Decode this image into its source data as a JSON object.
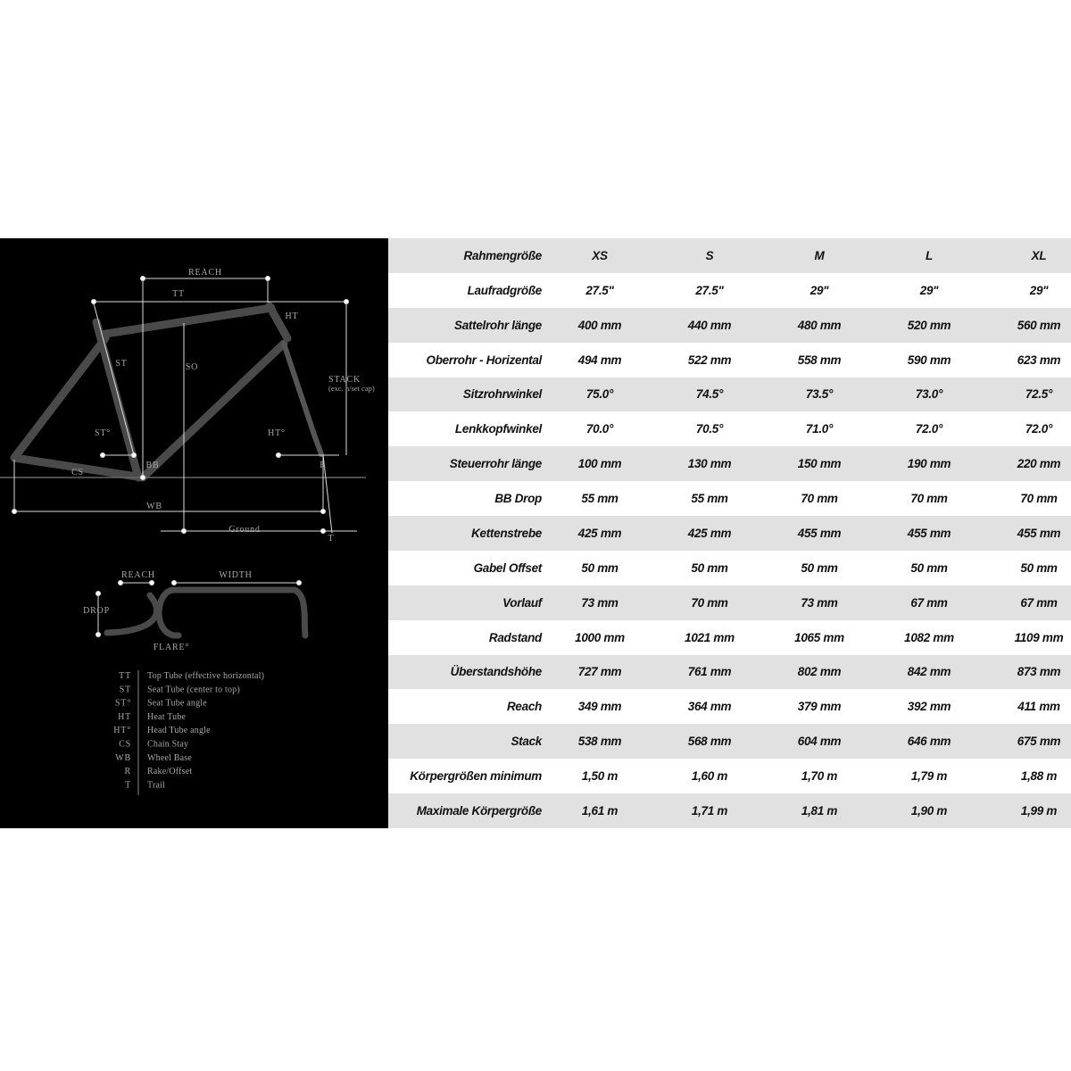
{
  "diagram": {
    "frame_labels": [
      "REACH",
      "TT",
      "HT",
      "ST",
      "SO",
      "STACK",
      "(exc. h/set cap)",
      "ST°",
      "HT°",
      "BB",
      "R",
      "CS",
      "WB",
      "Ground",
      "T"
    ],
    "handlebar_labels": [
      "REACH",
      "WIDTH",
      "DROP",
      "FLARE°"
    ],
    "legend": [
      {
        "abbr": "TT",
        "desc": "Top Tube (effective horizontal)"
      },
      {
        "abbr": "ST",
        "desc": "Seat Tube (center to top)"
      },
      {
        "abbr": "ST°",
        "desc": "Seat Tube angle"
      },
      {
        "abbr": "HT",
        "desc": "Heat Tube"
      },
      {
        "abbr": "HT°",
        "desc": "Head Tube angle"
      },
      {
        "abbr": "CS",
        "desc": "Chain Stay"
      },
      {
        "abbr": "WB",
        "desc": "Wheel Base"
      },
      {
        "abbr": "R",
        "desc": "Rake/Offset"
      },
      {
        "abbr": "T",
        "desc": "Trail"
      }
    ]
  },
  "table": {
    "rows": [
      [
        "Rahmengröße",
        "XS",
        "S",
        "M",
        "L",
        "XL"
      ],
      [
        "Laufradgröße",
        "27.5\"",
        "27.5\"",
        "29\"",
        "29\"",
        "29\""
      ],
      [
        "Sattelrohr länge",
        "400 mm",
        "440 mm",
        "480 mm",
        "520 mm",
        "560 mm"
      ],
      [
        "Oberrohr - Horizental",
        "494 mm",
        "522 mm",
        "558 mm",
        "590 mm",
        "623 mm"
      ],
      [
        "Sitzrohrwinkel",
        "75.0°",
        "74.5°",
        "73.5°",
        "73.0°",
        "72.5°"
      ],
      [
        "Lenkkopfwinkel",
        "70.0°",
        "70.5°",
        "71.0°",
        "72.0°",
        "72.0°"
      ],
      [
        "Steuerrohr länge",
        "100 mm",
        "130 mm",
        "150 mm",
        "190 mm",
        "220 mm"
      ],
      [
        "BB Drop",
        "55 mm",
        "55 mm",
        "70 mm",
        "70 mm",
        "70 mm"
      ],
      [
        "Kettenstrebe",
        "425 mm",
        "425 mm",
        "455 mm",
        "455 mm",
        "455 mm"
      ],
      [
        "Gabel Offset",
        "50 mm",
        "50 mm",
        "50 mm",
        "50 mm",
        "50 mm"
      ],
      [
        "Vorlauf",
        "73 mm",
        "70 mm",
        "73 mm",
        "67 mm",
        "67 mm"
      ],
      [
        "Radstand",
        "1000 mm",
        "1021 mm",
        "1065 mm",
        "1082 mm",
        "1109 mm"
      ],
      [
        "Überstandshöhe",
        "727 mm",
        "761 mm",
        "802 mm",
        "842 mm",
        "873 mm"
      ],
      [
        "Reach",
        "349 mm",
        "364 mm",
        "379 mm",
        "392 mm",
        "411 mm"
      ],
      [
        "Stack",
        "538 mm",
        "568 mm",
        "604 mm",
        "646 mm",
        "675 mm"
      ],
      [
        "Körpergrößen minimum",
        "1,50 m",
        "1,60 m",
        "1,70 m",
        "1,79 m",
        "1,88 m"
      ],
      [
        "Maximale Körpergröße",
        "1,61 m",
        "1,71 m",
        "1,81 m",
        "1,90 m",
        "1,99 m"
      ]
    ]
  }
}
